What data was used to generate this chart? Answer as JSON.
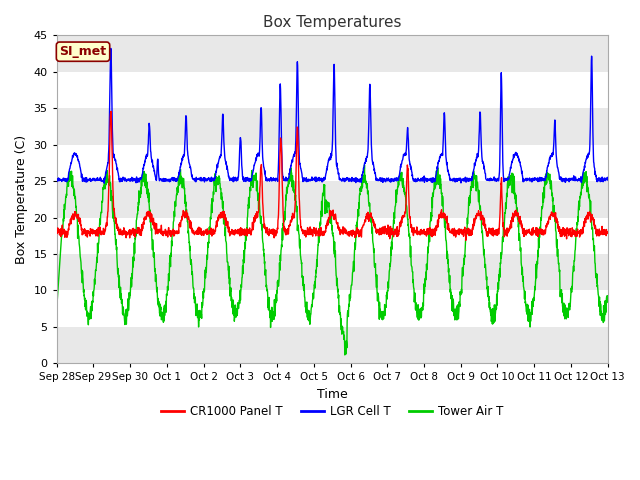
{
  "title": "Box Temperatures",
  "xlabel": "Time",
  "ylabel": "Box Temperature (C)",
  "ylim": [
    0,
    45
  ],
  "yticks": [
    0,
    5,
    10,
    15,
    20,
    25,
    30,
    35,
    40,
    45
  ],
  "fig_bg": "#ffffff",
  "plot_bg": "#ffffff",
  "band_colors": [
    "#e8e8e8",
    "#ffffff"
  ],
  "annotation_text": "SI_met",
  "annotation_color": "#8b0000",
  "annotation_bg": "#ffffcc",
  "x_tick_labels": [
    "Sep 28",
    "Sep 29",
    "Sep 30",
    "Oct 1",
    "Oct 2",
    "Oct 3",
    "Oct 4",
    "Oct 5",
    "Oct 6",
    "Oct 7",
    "Oct 8",
    "Oct 9",
    "Oct 10",
    "Oct 11",
    "Oct 12",
    "Oct 13"
  ],
  "line_colors": {
    "cr1000": "#ff0000",
    "lgr": "#0000ff",
    "tower": "#00cc00"
  },
  "legend_labels": [
    "CR1000 Panel T",
    "LGR Cell T",
    "Tower Air T"
  ],
  "line_width": 1.0,
  "title_fontsize": 11,
  "label_fontsize": 9,
  "tick_fontsize": 8,
  "n_days": 15,
  "n_pts_per_day": 144
}
